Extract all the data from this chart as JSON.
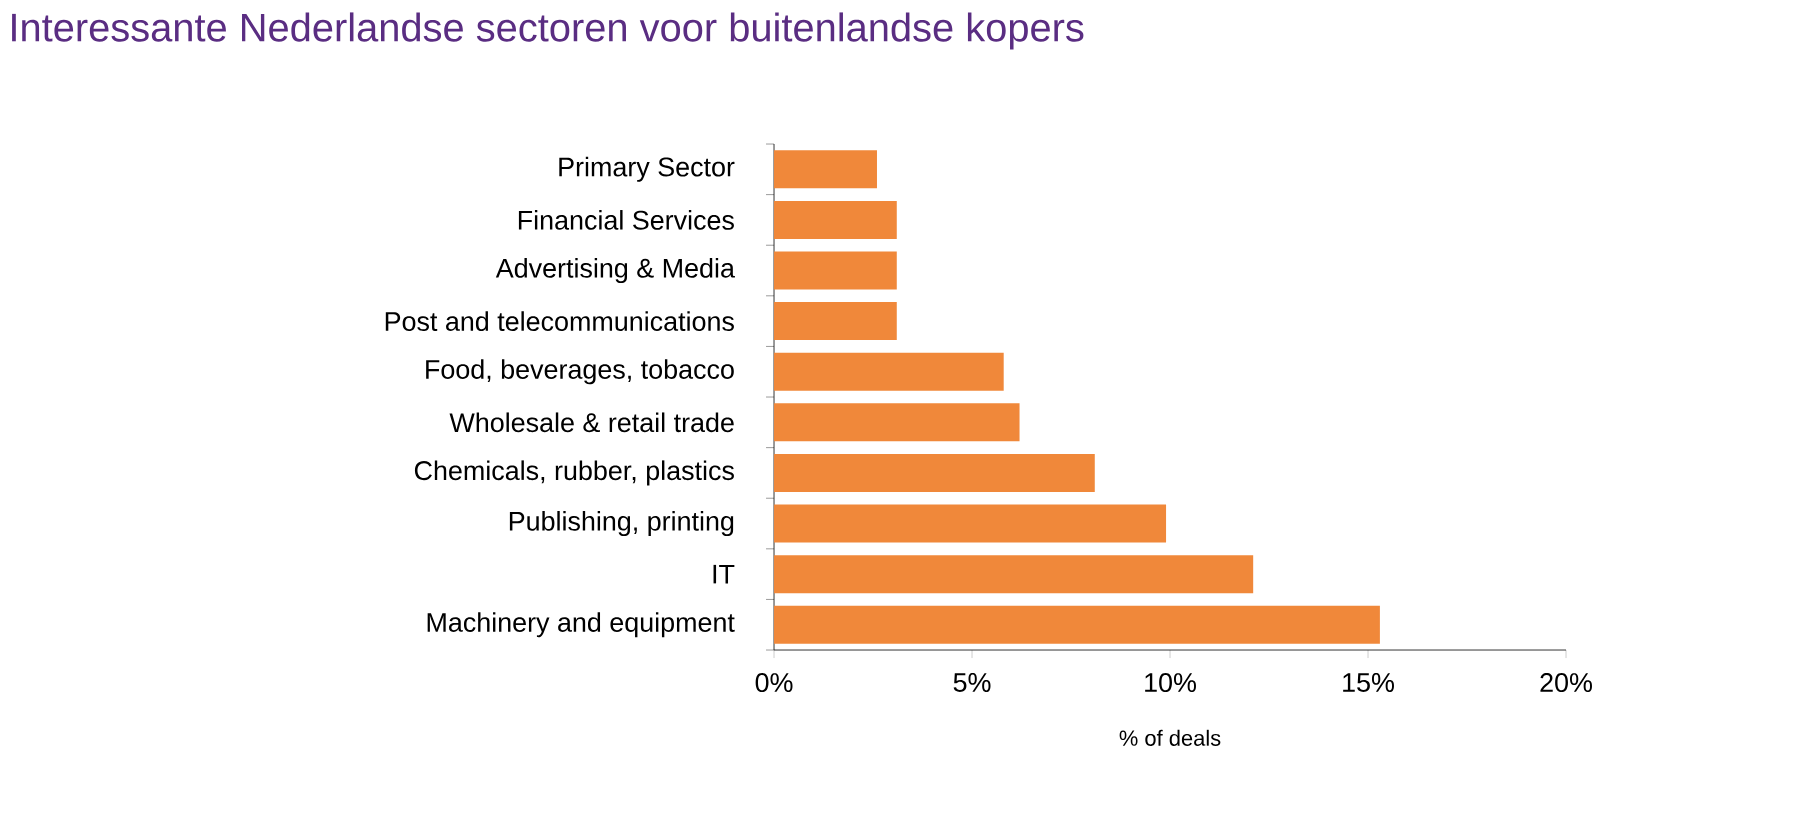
{
  "chart_data": {
    "type": "bar",
    "orientation": "horizontal",
    "title": "Interessante Nederlandse sectoren voor buitenlandse kopers",
    "xlabel": "% of deals",
    "categories": [
      "Primary Sector",
      "Financial Services",
      "Advertising & Media",
      "Post and telecommunications",
      "Food, beverages, tobacco",
      "Wholesale & retail trade",
      "Chemicals, rubber, plastics",
      "Publishing, printing",
      "IT",
      "Machinery and equipment"
    ],
    "values": [
      2.6,
      3.1,
      3.1,
      3.1,
      5.8,
      6.2,
      8.1,
      9.9,
      12.1,
      15.3
    ],
    "color": "#f0883a",
    "xlim": [
      0,
      20
    ],
    "xticks": [
      {
        "value": 0,
        "label": "0%"
      },
      {
        "value": 5,
        "label": "5%"
      },
      {
        "value": 10,
        "label": "10%"
      },
      {
        "value": 15,
        "label": "15%"
      },
      {
        "value": 20,
        "label": "20%"
      }
    ],
    "grid": false
  }
}
